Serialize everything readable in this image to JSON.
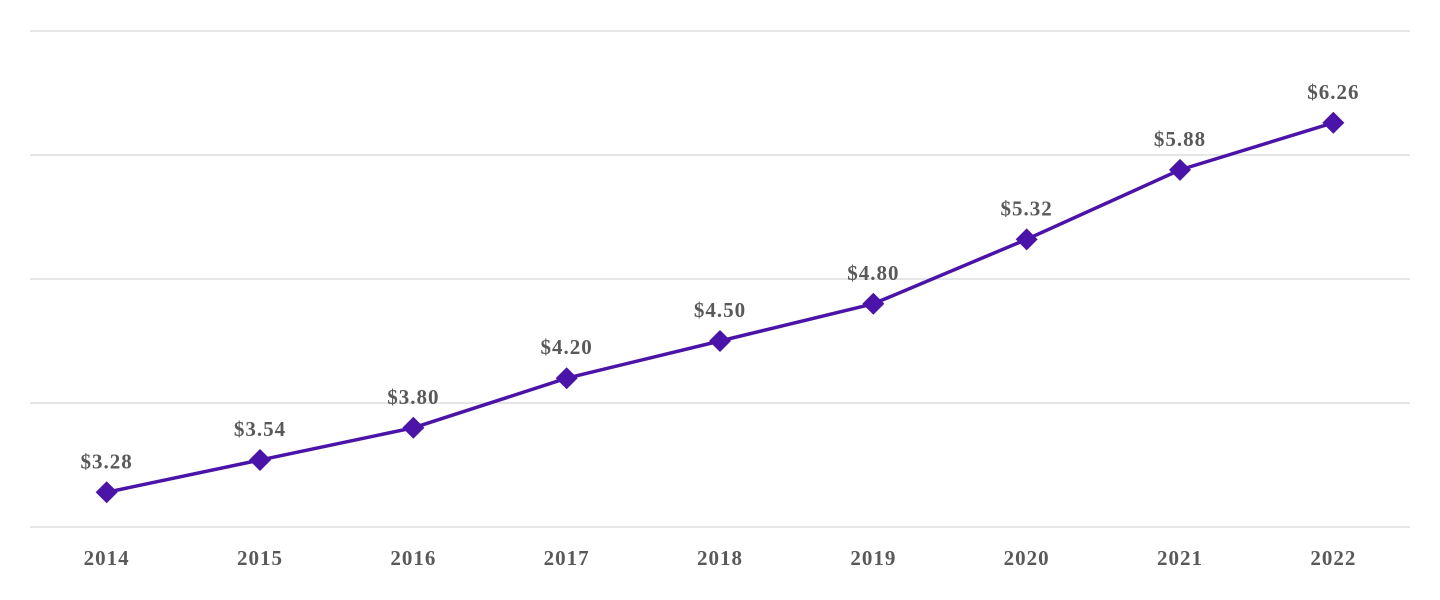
{
  "chart_data": {
    "type": "line",
    "title": "",
    "xlabel": "",
    "ylabel": "",
    "categories": [
      "2014",
      "2015",
      "2016",
      "2017",
      "2018",
      "2019",
      "2020",
      "2021",
      "2022"
    ],
    "series": [
      {
        "values": [
          3.28,
          3.54,
          3.8,
          4.2,
          4.5,
          4.8,
          5.32,
          5.88,
          6.26
        ],
        "labels": [
          "$3.28",
          "$3.54",
          "$3.80",
          "$4.20",
          "$4.50",
          "$4.80",
          "$5.32",
          "$5.88",
          "$6.26"
        ],
        "color": "#4B14A8",
        "marker": "diamond"
      }
    ],
    "ylim": [
      3,
      7
    ],
    "gridlines": [
      3,
      4,
      5,
      6,
      7
    ],
    "grid": true,
    "y_tick_labels_shown": false,
    "legend": "none",
    "grid_color": "#E6E6E6",
    "label_color": "#595959"
  }
}
